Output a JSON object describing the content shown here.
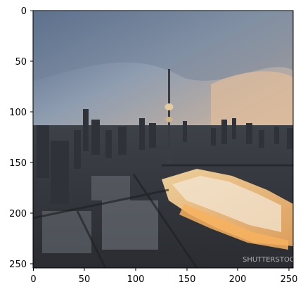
{
  "figure": {
    "x_ticks": [
      "0",
      "50",
      "100",
      "150",
      "200",
      "250"
    ],
    "y_ticks": [
      "0",
      "50",
      "100",
      "150",
      "200",
      "250"
    ]
  },
  "image": {
    "subject": "city-skyline-at-dusk",
    "watermark_text": "SHUTTERSTOCK",
    "colors": {
      "sky_top": "#5f7595",
      "sky_mid": "#9aa7b6",
      "sky_glow": "#d6b89c",
      "city_dark": "#3a3a40",
      "city_light": "#e9c08a",
      "lot": "#8b8f95"
    }
  }
}
